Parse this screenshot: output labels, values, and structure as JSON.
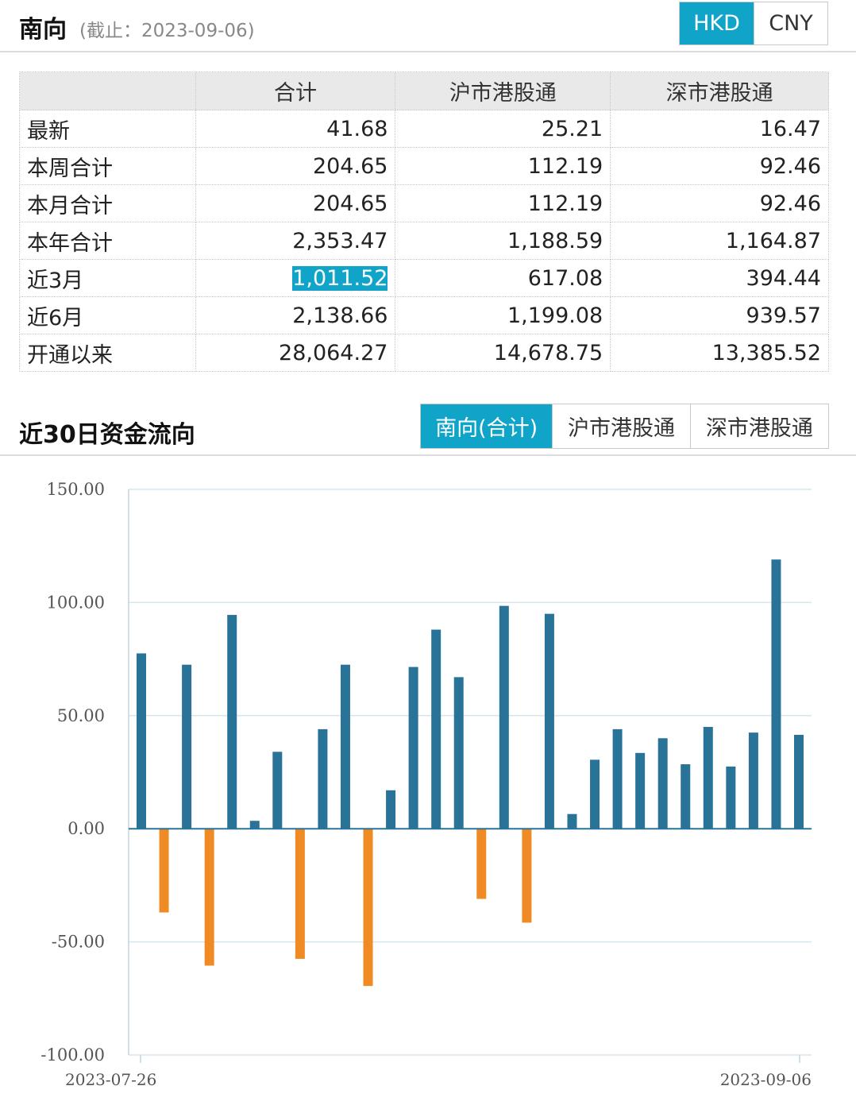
{
  "header": {
    "title": "南向",
    "subtitle": "(截止：2023-09-06)",
    "currency_options": [
      {
        "label": "HKD",
        "active": true
      },
      {
        "label": "CNY",
        "active": false
      }
    ]
  },
  "summary_table": {
    "columns": [
      "",
      "合计",
      "沪市港股通",
      "深市港股通"
    ],
    "rows": [
      {
        "label": "最新",
        "values": [
          "41.68",
          "25.21",
          "16.47"
        ]
      },
      {
        "label": "本周合计",
        "values": [
          "204.65",
          "112.19",
          "92.46"
        ]
      },
      {
        "label": "本月合计",
        "values": [
          "204.65",
          "112.19",
          "92.46"
        ]
      },
      {
        "label": "本年合计",
        "values": [
          "2,353.47",
          "1,188.59",
          "1,164.87"
        ]
      },
      {
        "label": "近3月",
        "values": [
          "1,011.52",
          "617.08",
          "394.44"
        ]
      },
      {
        "label": "近6月",
        "values": [
          "2,138.66",
          "1,199.08",
          "939.57"
        ]
      },
      {
        "label": "开通以来",
        "values": [
          "28,064.27",
          "14,678.75",
          "13,385.52"
        ]
      }
    ]
  },
  "flow_section": {
    "title": "近30日资金流向",
    "tabs": [
      {
        "label": "南向(合计)",
        "active": true
      },
      {
        "label": "沪市港股通",
        "active": false
      },
      {
        "label": "深市港股通",
        "active": false
      }
    ]
  },
  "chart_data": {
    "type": "bar",
    "x_start_label": "2023-07-26",
    "x_end_label": "2023-09-06",
    "values": [
      77.5,
      -37,
      72.5,
      -60.5,
      94.5,
      3.5,
      34,
      -57.5,
      44,
      72.5,
      -69.5,
      17,
      71.5,
      88,
      67,
      -31,
      98.5,
      -41.5,
      95,
      6.5,
      30.5,
      44,
      33.5,
      40,
      28.5,
      45,
      27.5,
      42.5,
      119,
      41.5
    ],
    "ylim": [
      -100,
      150
    ],
    "yticks": [
      "150.00",
      "100.00",
      "50.00",
      "0.00",
      "-50.00",
      "-100.00"
    ],
    "ytick_values": [
      150,
      100,
      50,
      0,
      -50,
      -100
    ],
    "grid": true,
    "colors": {
      "positive": "#2a7398",
      "negative": "#ef8a24",
      "grid": "#d5e6ee",
      "axis": "#c6d4dc"
    }
  }
}
